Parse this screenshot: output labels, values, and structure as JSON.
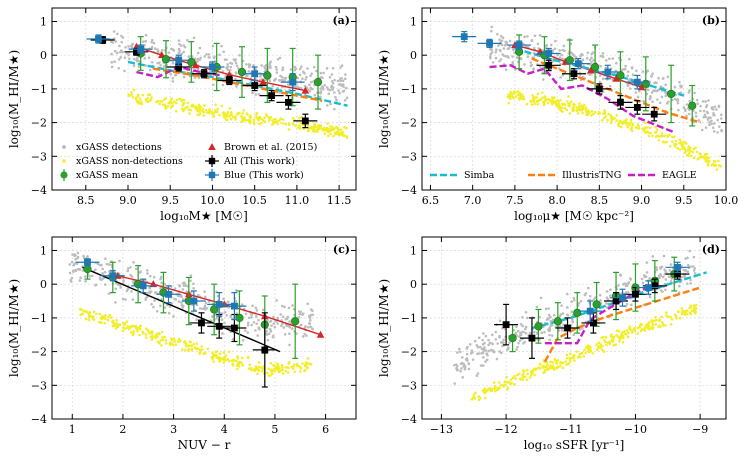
{
  "chart_data": [
    {
      "type": "scatter",
      "panel_label": "(a)",
      "xlabel": "log₁₀M★ [M☉]",
      "ylabel": "log₁₀(M_HI/M★)",
      "xlim": [
        8.1,
        11.7
      ],
      "ylim": [
        -4,
        1.4
      ],
      "xticks": [
        8.5,
        9.0,
        9.5,
        10.0,
        10.5,
        11.0,
        11.5
      ],
      "xtick_labels": [
        "8.5",
        "9.0",
        "9.5",
        "10.0",
        "10.5",
        "11.0",
        "11.5"
      ],
      "yticks": [
        -4,
        -3,
        -2,
        -1,
        0,
        1
      ],
      "ytick_labels": [
        "−4",
        "−3",
        "−2",
        "−1",
        "0",
        "1"
      ],
      "legend": [
        {
          "label": "xGASS detections",
          "kind": "dot",
          "color": "#b3b3b3"
        },
        {
          "label": "xGASS non-detections",
          "kind": "dot",
          "color": "#f2ee2a"
        },
        {
          "label": "xGASS mean",
          "kind": "circle",
          "color": "#2ca02c"
        },
        {
          "label": "Brown et al. (2015)",
          "kind": "triangle",
          "color": "#d62728"
        },
        {
          "label": "All (This work)",
          "kind": "square",
          "color": "#000000"
        },
        {
          "label": "Blue (This work)",
          "kind": "square",
          "color": "#1f77b4"
        }
      ],
      "series": [
        {
          "name": "Brown et al. (2015)",
          "kind": "triangle-line",
          "color": "#d62728",
          "x": [
            9.1,
            9.4,
            9.8,
            10.2,
            10.6,
            11.1
          ],
          "y": [
            0.25,
            0.0,
            -0.3,
            -0.58,
            -0.8,
            -1.05
          ]
        },
        {
          "name": "xGASS mean",
          "kind": "circle",
          "color": "#2ca02c",
          "x": [
            9.15,
            9.45,
            9.75,
            10.05,
            10.35,
            10.65,
            10.95,
            11.25
          ],
          "y": [
            0.05,
            -0.12,
            -0.2,
            -0.35,
            -0.5,
            -0.6,
            -0.65,
            -0.8
          ],
          "err": [
            0.5,
            0.55,
            0.6,
            0.7,
            0.75,
            0.8,
            0.85,
            0.8
          ]
        },
        {
          "name": "All (This work)",
          "kind": "square",
          "color": "#000000",
          "x": [
            8.7,
            9.1,
            9.6,
            9.9,
            10.2,
            10.5,
            10.7,
            10.9,
            11.1
          ],
          "y": [
            0.45,
            0.1,
            -0.35,
            -0.55,
            -0.75,
            -0.9,
            -1.2,
            -1.4,
            -1.95
          ],
          "err": [
            0.1,
            0.1,
            0.12,
            0.12,
            0.12,
            0.15,
            0.15,
            0.2,
            0.2
          ]
        },
        {
          "name": "Blue (This work)",
          "kind": "square",
          "color": "#1f77b4",
          "x": [
            8.65,
            9.15,
            9.6,
            10.0,
            10.5,
            10.95
          ],
          "y": [
            0.48,
            0.18,
            -0.15,
            -0.35,
            -0.55,
            -0.8
          ],
          "err": [
            0.12,
            0.12,
            0.15,
            0.15,
            0.2,
            0.25
          ]
        },
        {
          "name": "Simba",
          "kind": "line",
          "color": "#17becf",
          "style": "dashed",
          "x": [
            9.0,
            9.5,
            10.0,
            10.5,
            11.0,
            11.6
          ],
          "y": [
            -0.2,
            -0.45,
            -0.65,
            -0.9,
            -1.15,
            -1.5
          ]
        },
        {
          "name": "IllustrisTNG",
          "kind": "line",
          "color": "#ff7f0e",
          "style": "dashed",
          "x": [
            9.3,
            9.8,
            10.3,
            10.8,
            11.3
          ],
          "y": [
            -0.4,
            -0.6,
            -0.85,
            -1.1,
            -1.35
          ]
        },
        {
          "name": "EAGLE",
          "kind": "line",
          "color": "#c81ec8",
          "style": "dashed",
          "x": [
            9.1,
            9.35,
            9.6,
            9.85,
            10.1
          ],
          "y": [
            -0.5,
            -0.65,
            -0.35,
            -0.5,
            -0.6
          ]
        }
      ]
    },
    {
      "type": "scatter",
      "panel_label": "(b)",
      "xlabel": "log₁₀μ★ [M☉ kpc⁻²]",
      "ylabel": "log₁₀(M_HI/M★)",
      "xlim": [
        6.4,
        10.0
      ],
      "ylim": [
        -4,
        1.4
      ],
      "xticks": [
        6.5,
        7.0,
        7.5,
        8.0,
        8.5,
        9.0,
        9.5,
        10.0
      ],
      "xtick_labels": [
        "6.5",
        "7.0",
        "7.5",
        "8.0",
        "8.5",
        "9.0",
        "9.5",
        "10.0"
      ],
      "yticks": [
        -4,
        -3,
        -2,
        -1,
        0,
        1
      ],
      "ytick_labels": [
        "−4",
        "−3",
        "−2",
        "−1",
        "0",
        "1"
      ],
      "legend": [
        {
          "label": "Simba",
          "kind": "dash",
          "color": "#17becf"
        },
        {
          "label": "IllustrisTNG",
          "kind": "dash",
          "color": "#ff7f0e"
        },
        {
          "label": "EAGLE",
          "kind": "dash",
          "color": "#c81ec8"
        }
      ],
      "series": [
        {
          "name": "Brown et al. (2015)",
          "kind": "triangle-line",
          "color": "#d62728",
          "x": [
            7.5,
            7.8,
            8.1,
            8.4,
            8.7,
            9.0
          ],
          "y": [
            0.3,
            0.1,
            -0.2,
            -0.45,
            -0.7,
            -0.95
          ]
        },
        {
          "name": "xGASS mean",
          "kind": "circle",
          "color": "#2ca02c",
          "x": [
            7.55,
            7.85,
            8.15,
            8.45,
            8.75,
            9.05,
            9.35,
            9.6
          ],
          "y": [
            0.1,
            0.0,
            -0.15,
            -0.35,
            -0.6,
            -0.85,
            -1.15,
            -1.5
          ],
          "err": [
            0.5,
            0.55,
            0.6,
            0.65,
            0.7,
            0.8,
            0.85,
            0.6
          ]
        },
        {
          "name": "All (This work)",
          "kind": "square",
          "color": "#000000",
          "x": [
            7.9,
            8.2,
            8.5,
            8.75,
            8.95,
            9.15
          ],
          "y": [
            -0.3,
            -0.55,
            -1.0,
            -1.4,
            -1.55,
            -1.75
          ],
          "err": [
            0.15,
            0.15,
            0.15,
            0.2,
            0.2,
            0.2
          ]
        },
        {
          "name": "Blue (This work)",
          "kind": "square",
          "color": "#1f77b4",
          "x": [
            6.9,
            7.2,
            7.55,
            7.9,
            8.25,
            8.6,
            8.95
          ],
          "y": [
            0.55,
            0.35,
            0.3,
            0.05,
            -0.25,
            -0.5,
            -0.8
          ],
          "err": [
            0.15,
            0.12,
            0.12,
            0.15,
            0.15,
            0.2,
            0.2
          ]
        },
        {
          "name": "Simba",
          "kind": "line",
          "color": "#17becf",
          "style": "dashed",
          "x": [
            7.5,
            7.9,
            8.3,
            8.7,
            9.1,
            9.5
          ],
          "y": [
            0.2,
            -0.1,
            -0.35,
            -0.6,
            -0.9,
            -1.2
          ]
        },
        {
          "name": "IllustrisTNG",
          "kind": "line",
          "color": "#ff7f0e",
          "style": "dashed",
          "x": [
            7.7,
            8.1,
            8.5,
            8.9,
            9.3,
            9.7
          ],
          "y": [
            -0.1,
            -0.5,
            -0.9,
            -1.3,
            -1.7,
            -2.0
          ]
        },
        {
          "name": "EAGLE",
          "kind": "line",
          "color": "#c81ec8",
          "style": "dashed",
          "x": [
            7.2,
            7.45,
            7.65,
            7.85,
            8.05,
            8.3,
            8.6,
            8.9,
            9.2,
            9.4
          ],
          "y": [
            -0.35,
            -0.3,
            -0.55,
            -0.4,
            -1.0,
            -0.9,
            -1.3,
            -1.8,
            -2.1,
            -2.3
          ]
        }
      ]
    },
    {
      "type": "scatter",
      "panel_label": "(c)",
      "xlabel": "NUV − r",
      "ylabel": "log₁₀(M_HI/M★)",
      "xlim": [
        0.6,
        6.6
      ],
      "ylim": [
        -4,
        1.4
      ],
      "xticks": [
        1,
        2,
        3,
        4,
        5,
        6
      ],
      "xtick_labels": [
        "1",
        "2",
        "3",
        "4",
        "5",
        "6"
      ],
      "yticks": [
        -4,
        -3,
        -2,
        -1,
        0,
        1
      ],
      "ytick_labels": [
        "−4",
        "−3",
        "−2",
        "−1",
        "0",
        "1"
      ],
      "series": [
        {
          "name": "Brown et al. (2015)",
          "kind": "triangle-line",
          "color": "#d62728",
          "x": [
            1.9,
            2.6,
            3.3,
            4.0,
            4.8,
            5.9
          ],
          "y": [
            0.25,
            0.0,
            -0.3,
            -0.6,
            -0.95,
            -1.5
          ]
        },
        {
          "name": "xGASS mean",
          "kind": "circle",
          "color": "#2ca02c",
          "x": [
            1.3,
            1.8,
            2.3,
            2.8,
            3.3,
            3.8,
            4.3,
            4.8,
            5.4
          ],
          "y": [
            0.45,
            0.2,
            0.0,
            -0.25,
            -0.5,
            -0.75,
            -1.0,
            -1.2,
            -1.1
          ],
          "err": [
            0.3,
            0.45,
            0.55,
            0.6,
            0.7,
            0.75,
            0.8,
            0.85,
            1.1
          ]
        },
        {
          "name": "All (This work)",
          "kind": "square",
          "color": "#000000",
          "x": [
            3.55,
            3.9,
            4.2,
            4.8
          ],
          "y": [
            -1.15,
            -1.25,
            -1.3,
            -1.95
          ],
          "err": [
            0.3,
            0.35,
            0.4,
            1.1
          ]
        },
        {
          "name": "Blue (This work)",
          "kind": "square",
          "color": "#1f77b4",
          "x": [
            1.3,
            1.8,
            2.4,
            2.9,
            3.4,
            3.9,
            4.2
          ],
          "y": [
            0.65,
            0.25,
            -0.05,
            -0.3,
            -0.5,
            -0.6,
            -0.65
          ],
          "err": [
            0.1,
            0.15,
            0.2,
            0.25,
            0.3,
            0.35,
            0.4
          ]
        },
        {
          "name": "All fit",
          "kind": "line",
          "color": "#000000",
          "style": "solid",
          "x": [
            1.2,
            5.1
          ],
          "y": [
            0.5,
            -2.0
          ]
        }
      ]
    },
    {
      "type": "scatter",
      "panel_label": "(d)",
      "xlabel": "log₁₀ sSFR [yr⁻¹]",
      "ylabel": "log₁₀(M_HI/M★)",
      "xlim": [
        -13.3,
        -8.6
      ],
      "ylim": [
        -4,
        1.4
      ],
      "xticks": [
        -13,
        -12,
        -11,
        -10,
        -9
      ],
      "xtick_labels": [
        "−13",
        "−12",
        "−11",
        "−10",
        "−9"
      ],
      "yticks": [
        -4,
        -3,
        -2,
        -1,
        0,
        1
      ],
      "ytick_labels": [
        "−4",
        "−3",
        "−2",
        "−1",
        "0",
        "1"
      ],
      "series": [
        {
          "name": "xGASS mean",
          "kind": "circle",
          "color": "#2ca02c",
          "x": [
            -11.9,
            -11.5,
            -11.2,
            -10.9,
            -10.6,
            -10.3,
            -10.0,
            -9.7,
            -9.4
          ],
          "y": [
            -1.6,
            -1.25,
            -1.1,
            -0.85,
            -0.6,
            -0.35,
            -0.1,
            0.1,
            0.3
          ],
          "err": [
            0.4,
            0.5,
            0.55,
            0.6,
            0.65,
            0.7,
            0.7,
            0.6,
            0.5
          ]
        },
        {
          "name": "All (This work)",
          "kind": "square",
          "color": "#000000",
          "x": [
            -12.0,
            -11.6,
            -11.05,
            -10.65,
            -10.3,
            -10.0,
            -9.7,
            -9.35
          ],
          "y": [
            -1.2,
            -1.6,
            -1.3,
            -1.15,
            -0.5,
            -0.3,
            -0.05,
            0.3
          ],
          "err": [
            0.6,
            0.6,
            0.3,
            0.3,
            0.25,
            0.2,
            0.2,
            0.15
          ]
        },
        {
          "name": "Blue (This work)",
          "kind": "square",
          "color": "#1f77b4",
          "x": [
            -10.7,
            -10.2,
            -9.8,
            -9.35
          ],
          "y": [
            -0.8,
            -0.4,
            -0.1,
            0.5
          ],
          "err": [
            0.3,
            0.25,
            0.2,
            0.15
          ]
        },
        {
          "name": "Simba",
          "kind": "line",
          "color": "#17becf",
          "style": "dashed",
          "x": [
            -11.6,
            -11.0,
            -10.4,
            -9.9,
            -9.4,
            -8.9
          ],
          "y": [
            -1.3,
            -1.0,
            -0.6,
            -0.25,
            0.05,
            0.35
          ]
        },
        {
          "name": "IllustrisTNG",
          "kind": "line",
          "color": "#ff7f0e",
          "style": "dashed",
          "x": [
            -11.4,
            -11.2,
            -10.9,
            -10.5,
            -10.0,
            -9.5,
            -9.0
          ],
          "y": [
            -2.3,
            -1.6,
            -1.3,
            -1.0,
            -0.7,
            -0.4,
            -0.1
          ]
        },
        {
          "name": "EAGLE",
          "kind": "line",
          "color": "#c81ec8",
          "style": "dashed",
          "x": [
            -11.4,
            -10.9,
            -10.7,
            -10.4,
            -10.0,
            -9.6
          ],
          "y": [
            -1.75,
            -1.75,
            -1.05,
            -0.7,
            -0.25,
            0.05
          ]
        }
      ]
    }
  ]
}
